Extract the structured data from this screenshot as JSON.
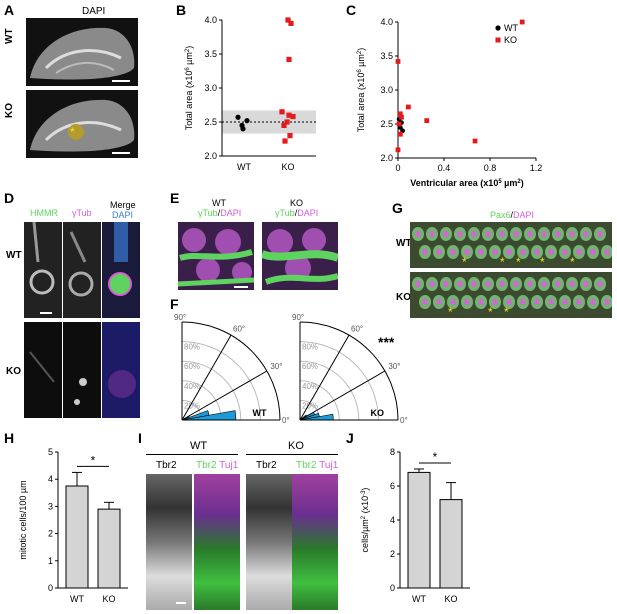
{
  "panels": {
    "A": {
      "label": "A",
      "title": "DAPI",
      "rows": [
        "WT",
        "KO"
      ]
    },
    "B": {
      "label": "B"
    },
    "C": {
      "label": "C"
    },
    "D": {
      "label": "D",
      "cols": [
        "HMMR",
        "γTub",
        "Merge",
        "DAPI"
      ],
      "rows": [
        "WT",
        "KO"
      ]
    },
    "E": {
      "label": "E",
      "wt_title": "WT",
      "ko_title": "KO",
      "sub_a": "γTub",
      "sub_sep": "/",
      "sub_b": "DAPI"
    },
    "F": {
      "label": "F",
      "wt": "WT",
      "ko": "KO",
      "sig": "***",
      "radial": [
        "20%",
        "40%",
        "60%",
        "80%",
        "100%"
      ],
      "angles": [
        "0°",
        "30°",
        "60°",
        "90°"
      ]
    },
    "G": {
      "label": "G",
      "title_a": "Pax6",
      "title_sep": "/",
      "title_b": "DAPI",
      "rows": [
        "WT",
        "KO"
      ]
    },
    "H": {
      "label": "H"
    },
    "I": {
      "label": "I",
      "wt": "WT",
      "ko": "KO",
      "tbr2": "Tbr2",
      "tuj1": "Tuj1"
    },
    "J": {
      "label": "J"
    }
  },
  "colors": {
    "wt": "#000000",
    "ko": "#e41a1c",
    "green": "#5fd35f",
    "magenta": "#d35fd3",
    "blue": "#3a7bd5",
    "rose_fill": "#1e9ad6",
    "bar_fill": "#d4d4d4",
    "band": "#d9d9d9",
    "asterisk": "#f5e11b"
  },
  "chart_data": [
    {
      "panel": "B",
      "type": "scatter",
      "categories": [
        "WT",
        "KO"
      ],
      "ylabel_parts": [
        "Total area (x10",
        "6",
        " µm",
        "2",
        ")"
      ],
      "ylim": [
        2.0,
        4.0
      ],
      "yticks": [
        "2.0",
        "2.5",
        "3.0",
        "3.5",
        "4.0"
      ],
      "series": [
        {
          "name": "WT",
          "values": [
            2.57,
            2.45,
            2.52,
            2.4
          ]
        },
        {
          "name": "KO",
          "values": [
            4.0,
            3.95,
            3.42,
            2.65,
            2.6,
            2.58,
            2.5,
            2.45,
            2.3,
            2.22
          ]
        }
      ],
      "reference_mean": 2.5,
      "band": [
        2.33,
        2.67
      ]
    },
    {
      "panel": "C",
      "type": "scatter",
      "xlabel_parts": [
        "Ventricular area (x10",
        "5",
        " µm",
        "2",
        ")"
      ],
      "ylabel_parts": [
        "Total area (x10",
        "6",
        " µm",
        "2",
        ")"
      ],
      "xlim": [
        0,
        1.2
      ],
      "ylim": [
        2.0,
        4.0
      ],
      "xticks": [
        "0",
        "0.4",
        "0.8",
        "1.2"
      ],
      "yticks": [
        "2.0",
        "2.5",
        "3.0",
        "3.5",
        "4.0"
      ],
      "legend": [
        "WT",
        "KO"
      ],
      "series": [
        {
          "name": "WT",
          "points": [
            [
              0.01,
              2.57
            ],
            [
              0.02,
              2.45
            ],
            [
              0.03,
              2.52
            ],
            [
              0.04,
              2.4
            ]
          ]
        },
        {
          "name": "KO",
          "points": [
            [
              1.08,
              4.0
            ],
            [
              0.0,
              3.42
            ],
            [
              0.09,
              2.75
            ],
            [
              0.02,
              2.65
            ],
            [
              0.03,
              2.6
            ],
            [
              0.25,
              2.55
            ],
            [
              0.01,
              2.5
            ],
            [
              0.02,
              2.35
            ],
            [
              0.67,
              2.25
            ],
            [
              0.0,
              2.12
            ]
          ]
        }
      ]
    },
    {
      "panel": "H",
      "type": "bar",
      "categories": [
        "WT",
        "KO"
      ],
      "values": [
        3.75,
        2.9
      ],
      "errors": [
        0.5,
        0.25
      ],
      "ylabel": "mitotic cells/100 µm",
      "ylim": [
        0,
        5
      ],
      "yticks": [
        "0",
        "1",
        "2",
        "3",
        "4",
        "5"
      ],
      "sig": "*"
    },
    {
      "panel": "J",
      "type": "bar",
      "categories": [
        "WT",
        "KO"
      ],
      "values": [
        6.8,
        5.2
      ],
      "errors": [
        0.2,
        1.0
      ],
      "ylabel_parts": [
        "cells/µm",
        "2",
        " (x10",
        "-3",
        ")"
      ],
      "ylim": [
        0,
        8
      ],
      "yticks": [
        "0",
        "2",
        "4",
        "6",
        "8"
      ],
      "sig": "*"
    }
  ]
}
